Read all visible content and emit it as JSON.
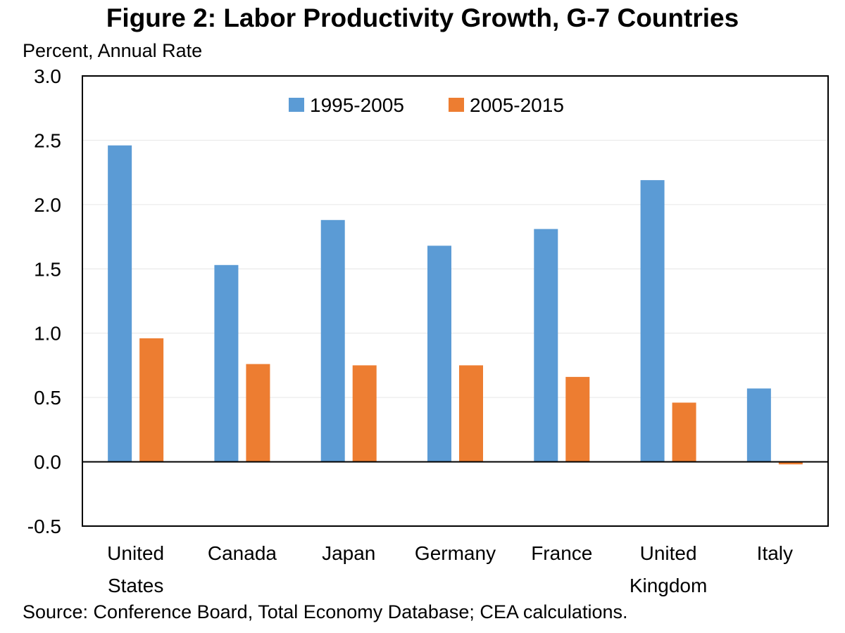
{
  "chart_data": {
    "type": "bar",
    "title": "Figure 2: Labor Productivity Growth, G-7 Countries",
    "ylabel": "Percent, Annual Rate",
    "xlabel": "",
    "categories": [
      [
        "United",
        "States"
      ],
      [
        "Canada"
      ],
      [
        "Japan"
      ],
      [
        "Germany"
      ],
      [
        "France"
      ],
      [
        "United",
        "Kingdom"
      ],
      [
        "Italy"
      ]
    ],
    "series": [
      {
        "name": "1995-2005",
        "color": "#5B9BD5",
        "values": [
          2.46,
          1.53,
          1.88,
          1.68,
          1.81,
          2.19,
          0.57
        ]
      },
      {
        "name": "2005-2015",
        "color": "#ED7D31",
        "values": [
          0.96,
          0.76,
          0.75,
          0.75,
          0.66,
          0.46,
          -0.02
        ]
      }
    ],
    "ylim": [
      -0.5,
      3.0
    ],
    "yticks": [
      "3.0",
      "2.5",
      "2.0",
      "1.5",
      "1.0",
      "0.5",
      "0.0",
      "-0.5"
    ],
    "grid": true,
    "legend_position": "top-center",
    "source": "Source: Conference Board, Total Economy Database; CEA calculations."
  }
}
